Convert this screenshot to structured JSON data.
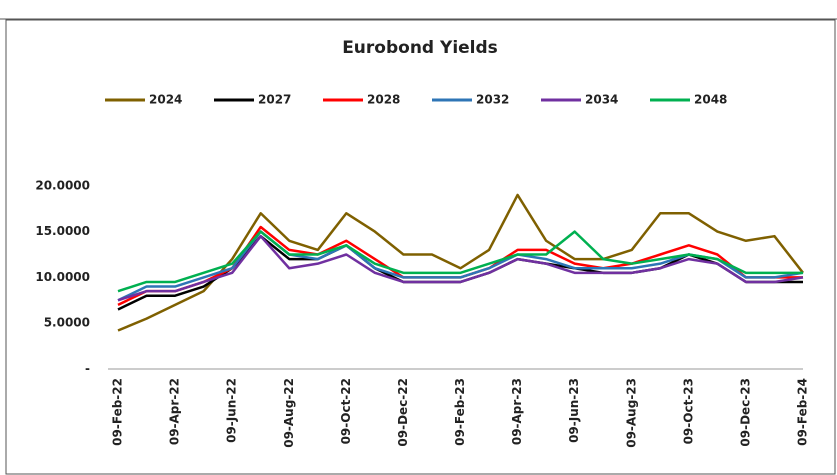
{
  "chart_data": {
    "type": "line",
    "title": "Eurobond Yields",
    "categories": [
      "09-Feb-22",
      null,
      "09-Apr-22",
      null,
      "09-Jun-22",
      null,
      "09-Aug-22",
      null,
      "09-Oct-22",
      null,
      "09-Dec-22",
      null,
      "09-Feb-23",
      null,
      "09-Apr-23",
      null,
      "09-Jun-23",
      null,
      "09-Aug-23",
      null,
      "09-Oct-23",
      null,
      "09-Dec-23",
      null,
      "09-Feb-24"
    ],
    "series": [
      {
        "name": "2024",
        "color": "#7f6000",
        "values": [
          4.2,
          5.5,
          7,
          8.5,
          12,
          17,
          14,
          13,
          17,
          15,
          12.5,
          12.5,
          11,
          13,
          19,
          14,
          12,
          12,
          13,
          17,
          17,
          15,
          14,
          14.5,
          10.5
        ]
      },
      {
        "name": "2027",
        "color": "#000000",
        "values": [
          6.5,
          8,
          8,
          9,
          11,
          14.5,
          12,
          12,
          13.5,
          11,
          9.5,
          9.5,
          9.5,
          10.5,
          12,
          11.5,
          11,
          10.5,
          10.5,
          11,
          12.5,
          11.5,
          9.5,
          9.5,
          9.5
        ]
      },
      {
        "name": "2028",
        "color": "#ff0000",
        "values": [
          7,
          8.5,
          8.5,
          9.5,
          11,
          15.5,
          13,
          12.5,
          14,
          12,
          10,
          10,
          10,
          11,
          13,
          13,
          11.5,
          11,
          11.5,
          12.5,
          13.5,
          12.5,
          10,
          10,
          10
        ]
      },
      {
        "name": "2032",
        "color": "#2e75b6",
        "values": [
          7.5,
          9,
          9,
          10,
          11,
          15,
          12.5,
          12,
          13.5,
          11,
          10,
          10,
          10,
          11,
          12.5,
          12,
          11,
          11,
          11,
          11.5,
          12.5,
          12,
          10,
          10,
          10.5
        ]
      },
      {
        "name": "2034",
        "color": "#7030a0",
        "values": [
          7.5,
          8.5,
          8.5,
          9.5,
          10.5,
          14.5,
          11,
          11.5,
          12.5,
          10.5,
          9.5,
          9.5,
          9.5,
          10.5,
          12,
          11.5,
          10.5,
          10.5,
          10.5,
          11,
          12,
          11.5,
          9.5,
          9.5,
          10
        ]
      },
      {
        "name": "2048",
        "color": "#00b050",
        "values": [
          8.5,
          9.5,
          9.5,
          10.5,
          11.5,
          15,
          12.5,
          12.5,
          13.5,
          11.5,
          10.5,
          10.5,
          10.5,
          11.5,
          12.5,
          12.5,
          15,
          12,
          11.5,
          12,
          12.5,
          12,
          10.5,
          10.5,
          10.5
        ]
      }
    ],
    "ylim": [
      0,
      25
    ],
    "yticks": [
      {
        "value": 0,
        "label": "-"
      },
      {
        "value": 5,
        "label": "5.0000"
      },
      {
        "value": 10,
        "label": "10.0000"
      },
      {
        "value": 15,
        "label": "15.0000"
      },
      {
        "value": 20,
        "label": "20.0000"
      }
    ]
  }
}
